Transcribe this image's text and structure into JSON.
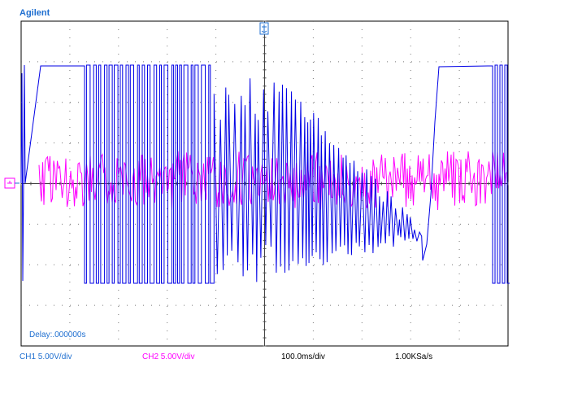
{
  "brand": "Agilent",
  "delay_label": "Delay:.000000s",
  "status": {
    "ch1": "CH1 5.00V/div",
    "ch2": "CH2 5.00V/div",
    "timebase": "100.0ms/div",
    "sample_rate": "1.00KSa/s"
  },
  "colors": {
    "ch1": "#0000e6",
    "ch2": "#ff00ff",
    "grid": "#555555",
    "frame": "#000000",
    "brand": "#1f6fd0",
    "label_text": "#1f6fd0",
    "marker_trigger": "#1f6fd0",
    "marker_ground": "#ff00ff"
  },
  "markers": {
    "trigger_icon": "trigger-position-icon",
    "ground_icon": "ground-reference-icon"
  }
}
